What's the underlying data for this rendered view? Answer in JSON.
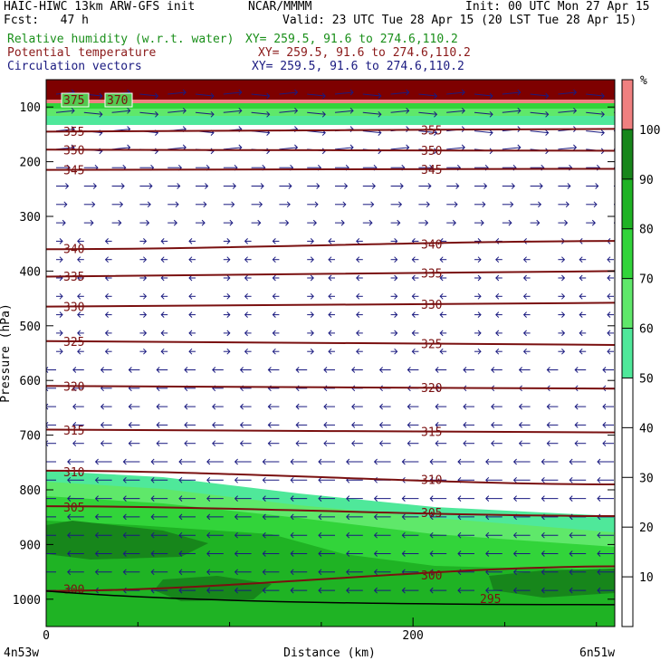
{
  "header": {
    "model_line": "HAIC-HIWC 13km ARW-GFS init",
    "org": "NCAR/MMMM",
    "init": "Init: 00 UTC Mon 27 Apr 15",
    "fcst": "Fcst:   47 h",
    "valid": "Valid: 23 UTC Tue 28 Apr 15 (20 LST Tue 28 Apr 15)",
    "fields": [
      {
        "name": "Relative humidity (w.r.t. water)",
        "xy": "XY= 259.5, 91.6 to 274.6,110.2",
        "color": "#1a8f1a"
      },
      {
        "name": "Potential temperature",
        "xy": "XY= 259.5, 91.6 to 274.6,110.2",
        "color": "#8b1a1a"
      },
      {
        "name": "Circulation vectors",
        "xy": "XY= 259.5, 91.6 to 274.6,110.2",
        "color": "#1a1a80"
      }
    ]
  },
  "chart_data": {
    "type": "heatmap",
    "xlabel": "Distance (km)",
    "ylabel": "Pressure (hPa)",
    "x_ticks": [
      "0",
      "200"
    ],
    "x_end_labels": {
      "left": "4n53w",
      "right": "6n51w"
    },
    "y_ticks": [
      100,
      200,
      300,
      400,
      500,
      600,
      700,
      800,
      900,
      1000
    ],
    "xlim": [
      0,
      310
    ],
    "ylim_hPa": [
      1050,
      50
    ],
    "colorbar": {
      "unit": "%",
      "ticks": [
        10,
        20,
        30,
        40,
        50,
        60,
        70,
        80,
        90,
        100
      ],
      "bands": [
        {
          "from": 50,
          "to": 60,
          "color": "#4fe89a"
        },
        {
          "from": 60,
          "to": 70,
          "color": "#5fe86a"
        },
        {
          "from": 70,
          "to": 80,
          "color": "#32d43a"
        },
        {
          "from": 80,
          "to": 90,
          "color": "#1fb324"
        },
        {
          "from": 90,
          "to": 100,
          "color": "#17861b"
        },
        {
          "from": 100,
          "to": 110,
          "color": "#f08080"
        }
      ]
    },
    "theta_isentropes": [
      {
        "label": "355",
        "p": [
          145,
          140
        ]
      },
      {
        "label": "350",
        "p": [
          178,
          180
        ]
      },
      {
        "label": "345",
        "p": [
          215,
          213
        ]
      },
      {
        "label": "340",
        "p": [
          360,
          345
        ]
      },
      {
        "label": "335",
        "p": [
          410,
          400
        ]
      },
      {
        "label": "330",
        "p": [
          465,
          458
        ]
      },
      {
        "label": "325",
        "p": [
          528,
          535
        ]
      },
      {
        "label": "320",
        "p": [
          610,
          615
        ]
      },
      {
        "label": "315",
        "p": [
          690,
          695
        ]
      },
      {
        "label": "310",
        "p": [
          765,
          790
        ]
      },
      {
        "label": "305",
        "p": [
          830,
          848
        ]
      },
      {
        "label": "300",
        "p": [
          985,
          940
        ]
      }
    ],
    "top_labels": [
      "375",
      "370"
    ],
    "bottom_label": "295"
  }
}
